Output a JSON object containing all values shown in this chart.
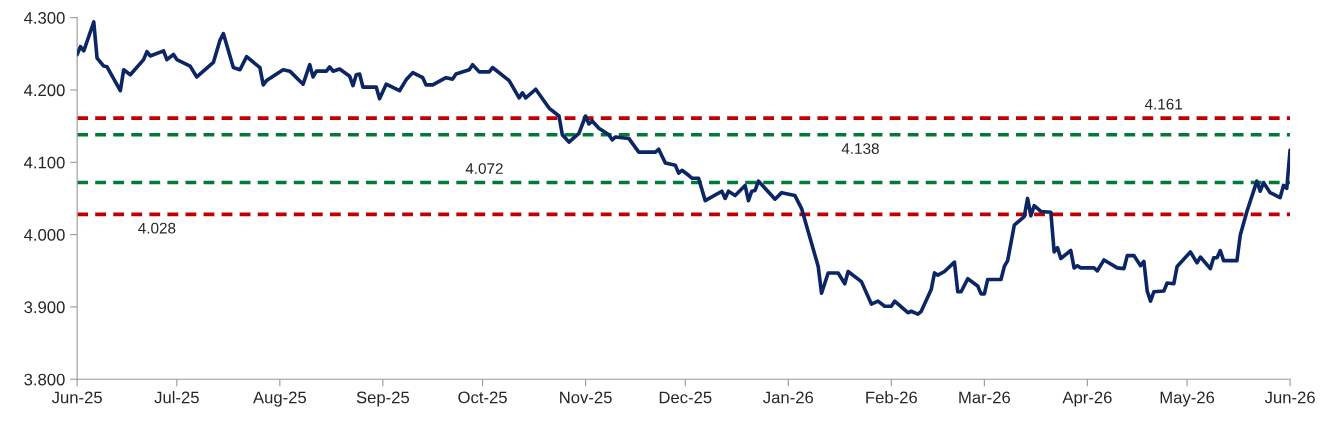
{
  "chart_data": {
    "type": "line",
    "x": [
      "2025-06-01",
      "2025-06-02",
      "2025-06-03",
      "2025-06-06",
      "2025-06-07",
      "2025-06-09",
      "2025-06-10",
      "2025-06-14",
      "2025-06-15",
      "2025-06-17",
      "2025-06-21",
      "2025-06-22",
      "2025-06-23",
      "2025-06-27",
      "2025-06-28",
      "2025-06-30",
      "2025-07-01",
      "2025-07-05",
      "2025-07-07",
      "2025-07-12",
      "2025-07-14",
      "2025-07-15",
      "2025-07-18",
      "2025-07-20",
      "2025-07-22",
      "2025-07-26",
      "2025-07-27",
      "2025-07-28",
      "2025-08-02",
      "2025-08-04",
      "2025-08-08",
      "2025-08-10",
      "2025-08-11",
      "2025-08-12",
      "2025-08-15",
      "2025-08-16",
      "2025-08-17",
      "2025-08-19",
      "2025-08-22",
      "2025-08-23",
      "2025-08-24",
      "2025-08-25",
      "2025-08-26",
      "2025-08-30",
      "2025-08-31",
      "2025-09-02",
      "2025-09-06",
      "2025-09-08",
      "2025-09-10",
      "2025-09-13",
      "2025-09-14",
      "2025-09-16",
      "2025-09-20",
      "2025-09-22",
      "2025-09-23",
      "2025-09-27",
      "2025-09-28",
      "2025-09-30",
      "2025-10-03",
      "2025-10-04",
      "2025-10-09",
      "2025-10-12",
      "2025-10-13",
      "2025-10-14",
      "2025-10-17",
      "2025-10-21",
      "2025-10-24",
      "2025-10-25",
      "2025-10-27",
      "2025-10-30",
      "2025-11-01",
      "2025-11-02",
      "2025-11-03",
      "2025-11-05",
      "2025-11-08",
      "2025-11-09",
      "2025-11-10",
      "2025-11-14",
      "2025-11-17",
      "2025-11-22",
      "2025-11-23",
      "2025-11-25",
      "2025-11-28",
      "2025-11-29",
      "2025-11-30",
      "2025-12-02",
      "2025-12-03",
      "2025-12-05",
      "2025-12-07",
      "2025-12-12",
      "2025-12-13",
      "2025-12-14",
      "2025-12-16",
      "2025-12-19",
      "2025-12-20",
      "2025-12-21",
      "2025-12-22",
      "2025-12-23",
      "2025-12-27",
      "2025-12-28",
      "2025-12-30",
      "2026-01-03",
      "2026-01-05",
      "2026-01-07",
      "2026-01-10",
      "2026-01-11",
      "2026-01-13",
      "2026-01-16",
      "2026-01-18",
      "2026-01-19",
      "2026-01-23",
      "2026-01-26",
      "2026-01-28",
      "2026-01-30",
      "2026-02-01",
      "2026-02-02",
      "2026-02-06",
      "2026-02-07",
      "2026-02-09",
      "2026-02-10",
      "2026-02-13",
      "2026-02-14",
      "2026-02-15",
      "2026-02-17",
      "2026-02-20",
      "2026-02-21",
      "2026-02-22",
      "2026-02-24",
      "2026-02-27",
      "2026-02-28",
      "2026-03-01",
      "2026-03-02",
      "2026-03-06",
      "2026-03-07",
      "2026-03-08",
      "2026-03-10",
      "2026-03-13",
      "2026-03-14",
      "2026-03-15",
      "2026-03-16",
      "2026-03-18",
      "2026-03-21",
      "2026-03-22",
      "2026-03-23",
      "2026-03-24",
      "2026-03-27",
      "2026-03-28",
      "2026-03-29",
      "2026-03-30",
      "2026-04-03",
      "2026-04-04",
      "2026-04-06",
      "2026-04-10",
      "2026-04-12",
      "2026-04-13",
      "2026-04-15",
      "2026-04-17",
      "2026-04-18",
      "2026-04-19",
      "2026-04-20",
      "2026-04-21",
      "2026-04-24",
      "2026-04-25",
      "2026-04-27",
      "2026-04-28",
      "2026-05-02",
      "2026-05-04",
      "2026-05-05",
      "2026-05-08",
      "2026-05-09",
      "2026-05-10",
      "2026-05-11",
      "2026-05-12",
      "2026-05-16",
      "2026-05-17",
      "2026-05-19",
      "2026-05-22",
      "2026-05-23",
      "2026-05-24",
      "2026-05-26",
      "2026-05-29",
      "2026-05-30",
      "2026-05-31",
      "2026-06-01"
    ],
    "series": [
      {
        "color": "#0b2565",
        "values": [
          4.249,
          4.26,
          4.254,
          4.294,
          4.244,
          4.233,
          4.232,
          4.199,
          4.228,
          4.221,
          4.242,
          4.253,
          4.247,
          4.254,
          4.242,
          4.249,
          4.242,
          4.233,
          4.218,
          4.238,
          4.269,
          4.278,
          4.231,
          4.228,
          4.246,
          4.231,
          4.207,
          4.213,
          4.228,
          4.226,
          4.208,
          4.235,
          4.218,
          4.226,
          4.226,
          4.232,
          4.226,
          4.229,
          4.219,
          4.206,
          4.221,
          4.222,
          4.204,
          4.204,
          4.188,
          4.208,
          4.199,
          4.214,
          4.224,
          4.217,
          4.207,
          4.207,
          4.217,
          4.215,
          4.222,
          4.228,
          4.235,
          4.225,
          4.225,
          4.231,
          4.213,
          4.189,
          4.196,
          4.189,
          4.201,
          4.175,
          4.164,
          4.138,
          4.128,
          4.14,
          4.164,
          4.153,
          4.157,
          4.147,
          4.138,
          4.131,
          4.135,
          4.133,
          4.114,
          4.114,
          4.118,
          4.099,
          4.096,
          4.085,
          4.089,
          4.082,
          4.078,
          4.078,
          4.047,
          4.06,
          4.05,
          4.06,
          4.054,
          4.068,
          4.047,
          4.06,
          4.061,
          4.074,
          4.054,
          4.049,
          4.058,
          4.054,
          4.036,
          4.004,
          3.956,
          3.919,
          3.947,
          3.947,
          3.932,
          3.949,
          3.935,
          3.904,
          3.908,
          3.901,
          3.901,
          3.908,
          3.892,
          3.894,
          3.89,
          3.894,
          3.924,
          3.947,
          3.944,
          3.949,
          3.962,
          3.921,
          3.921,
          3.939,
          3.929,
          3.918,
          3.918,
          3.938,
          3.938,
          3.956,
          3.964,
          4.013,
          4.025,
          4.05,
          4.026,
          4.04,
          4.032,
          4.031,
          3.976,
          3.982,
          3.967,
          3.978,
          3.954,
          3.957,
          3.954,
          3.954,
          3.95,
          3.965,
          3.954,
          3.953,
          3.971,
          3.971,
          3.957,
          3.963,
          3.922,
          3.908,
          3.921,
          3.922,
          3.933,
          3.932,
          3.956,
          3.976,
          3.961,
          3.969,
          3.953,
          3.968,
          3.968,
          3.978,
          3.964,
          3.964,
          3.999,
          4.032,
          4.074,
          4.06,
          4.072,
          4.058,
          4.051,
          4.068,
          4.064,
          4.117
        ]
      }
    ],
    "xlim": [
      "2025-06-01",
      "2026-06-01"
    ],
    "xticks": [
      {
        "value": "2025-06-01",
        "label": "Jun-25"
      },
      {
        "value": "2025-07-01",
        "label": "Jul-25"
      },
      {
        "value": "2025-08-01",
        "label": "Aug-25"
      },
      {
        "value": "2025-09-01",
        "label": "Sep-25"
      },
      {
        "value": "2025-10-01",
        "label": "Oct-25"
      },
      {
        "value": "2025-11-01",
        "label": "Nov-25"
      },
      {
        "value": "2025-12-01",
        "label": "Dec-25"
      },
      {
        "value": "2026-01-01",
        "label": "Jan-26"
      },
      {
        "value": "2026-02-01",
        "label": "Feb-26"
      },
      {
        "value": "2026-03-01",
        "label": "Mar-26"
      },
      {
        "value": "2026-04-01",
        "label": "Apr-26"
      },
      {
        "value": "2026-05-01",
        "label": "May-26"
      },
      {
        "value": "2026-06-01",
        "label": "Jun-26"
      }
    ],
    "ylim": [
      3.8,
      4.3
    ],
    "yticks": [
      {
        "value": 3.8,
        "label": "3.800"
      },
      {
        "value": 3.9,
        "label": "3.900"
      },
      {
        "value": 4.0,
        "label": "4.000"
      },
      {
        "value": 4.1,
        "label": "4.100"
      },
      {
        "value": 4.2,
        "label": "4.200"
      },
      {
        "value": 4.3,
        "label": "4.300"
      }
    ],
    "ref_lines": [
      {
        "axis": "y",
        "value": 4.161,
        "label": "4.161",
        "color": "#c00000",
        "line_style": "dashed"
      },
      {
        "axis": "y",
        "value": 4.138,
        "label": "4.138",
        "color": "#007a37",
        "line_style": "dashed"
      },
      {
        "axis": "y",
        "value": 4.072,
        "label": "4.072",
        "color": "#007a37",
        "line_style": "dashed"
      },
      {
        "axis": "y",
        "value": 4.028,
        "label": "4.028",
        "color": "#c00000",
        "line_style": "dashed"
      }
    ],
    "grid": false,
    "legend": false,
    "marker": "none",
    "line_style": "solid"
  }
}
